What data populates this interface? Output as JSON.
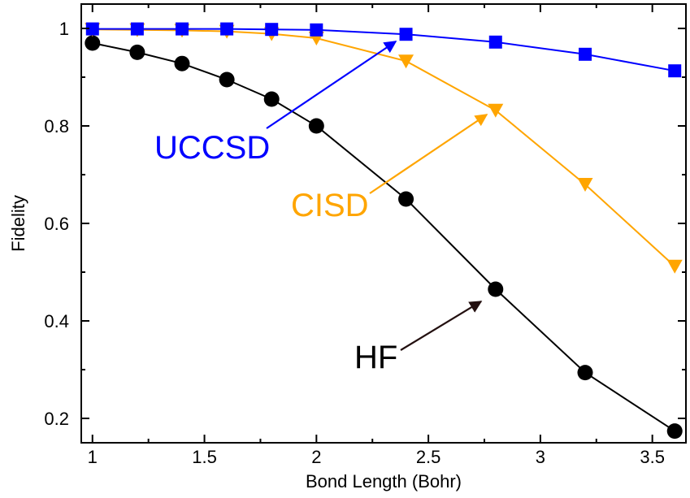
{
  "chart_data": {
    "type": "line",
    "title": "",
    "xlabel": "Bond Length (Bohr)",
    "ylabel": "Fidelity",
    "xlim": [
      0.95,
      3.65
    ],
    "ylim": [
      0.15,
      1.05
    ],
    "x_ticks": [
      "1",
      "1.5",
      "2",
      "2.5",
      "3",
      "3.5"
    ],
    "y_ticks": [
      "0.2",
      "0.4",
      "0.6",
      "0.8",
      "1"
    ],
    "grid": false,
    "legend": "none",
    "series": [
      {
        "name": "UCCSD",
        "color": "#0000ff",
        "marker": "square",
        "x": [
          1.0,
          1.2,
          1.4,
          1.6,
          1.8,
          2.0,
          2.4,
          2.8,
          3.2,
          3.6
        ],
        "y": [
          0.999,
          0.999,
          0.999,
          0.999,
          0.998,
          0.997,
          0.988,
          0.972,
          0.947,
          0.913
        ]
      },
      {
        "name": "CISD",
        "color": "#ffa500",
        "marker": "triangle-down",
        "x": [
          1.0,
          1.2,
          1.4,
          1.6,
          1.8,
          2.0,
          2.4,
          2.8,
          3.2,
          3.6
        ],
        "y": [
          0.998,
          0.997,
          0.996,
          0.994,
          0.989,
          0.98,
          0.933,
          0.832,
          0.68,
          0.512
        ]
      },
      {
        "name": "HF",
        "color": "#000000",
        "marker": "circle",
        "x": [
          1.0,
          1.2,
          1.4,
          1.6,
          1.8,
          2.0,
          2.4,
          2.8,
          3.2,
          3.6
        ],
        "y": [
          0.97,
          0.951,
          0.928,
          0.895,
          0.855,
          0.8,
          0.65,
          0.465,
          0.294,
          0.174
        ]
      }
    ],
    "annotations": [
      {
        "text": "UCCSD",
        "color": "#0000ff",
        "arrow_to": [
          2.37,
          0.975
        ]
      },
      {
        "text": "CISD",
        "color": "#ffa500",
        "arrow_to": [
          2.78,
          0.83
        ]
      },
      {
        "text": "HF",
        "color": "#000000",
        "arrow_to": [
          2.78,
          0.465
        ]
      }
    ]
  }
}
